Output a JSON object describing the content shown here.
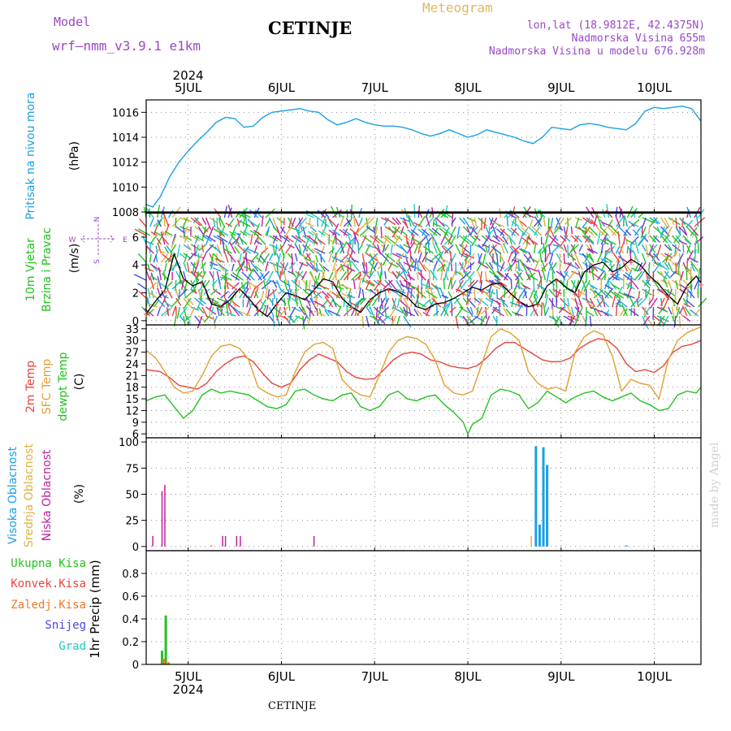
{
  "header": {
    "model_label": "Model",
    "model_name": "wrf–nmm_v3.9.1 e1km",
    "title": "CETINJE",
    "product": "Meteogram",
    "lonlat": "lon,lat (18.9812E, 42.4375N)",
    "elevation": "Nadmorska Visina 655m",
    "model_elevation": "Nadmorska Visina u modelu 676.928m",
    "footer": "CETINJE",
    "credit": "made by Angel"
  },
  "colors": {
    "pressure": "#1aa0e6",
    "temp2m": "#e8443c",
    "sfc_temp": "#e0a030",
    "dewpoint": "#22c21e",
    "high_cloud": "#1aa0e6",
    "mid_cloud": "#e0b040",
    "low_cloud": "#c0209c",
    "precip_total": "#22c21e",
    "precip_conv": "#e8443c",
    "precip_frozen": "#f07828",
    "snow": "#4a48e0",
    "hail": "#20c8c0",
    "wind": "#000000"
  },
  "time_axis": {
    "year": "2024",
    "days": [
      "5JUL",
      "6JUL",
      "7JUL",
      "8JUL",
      "9JUL",
      "10JUL"
    ],
    "start_day_fraction": 4.55,
    "end_day_fraction": 10.5
  },
  "wind_rose": {
    "n": "N",
    "s": "S",
    "e": "E",
    "w": "W"
  },
  "chart_data": [
    {
      "type": "line",
      "ylabel_title": "Pritisak na nivou mora",
      "ylabel_unit": "(hPa)",
      "ylim": [
        1008,
        1017
      ],
      "yticks": [
        "1008",
        "1010",
        "1012",
        "1014",
        "1016"
      ],
      "grid": true,
      "series": [
        {
          "color_key": "pressure",
          "x": [
            4.55,
            4.62,
            4.7,
            4.8,
            4.9,
            5.0,
            5.1,
            5.2,
            5.3,
            5.4,
            5.5,
            5.6,
            5.7,
            5.8,
            5.9,
            6.0,
            6.1,
            6.2,
            6.3,
            6.4,
            6.5,
            6.6,
            6.7,
            6.8,
            6.9,
            7.0,
            7.1,
            7.2,
            7.3,
            7.4,
            7.5,
            7.6,
            7.7,
            7.8,
            7.9,
            8.0,
            8.1,
            8.2,
            8.3,
            8.4,
            8.5,
            8.6,
            8.7,
            8.8,
            8.9,
            9.0,
            9.1,
            9.2,
            9.3,
            9.4,
            9.5,
            9.6,
            9.7,
            9.8,
            9.9,
            10.0,
            10.1,
            10.2,
            10.3,
            10.4,
            10.5
          ],
          "values": [
            1008.6,
            1008.4,
            1009.2,
            1010.8,
            1012.0,
            1012.9,
            1013.7,
            1014.4,
            1015.2,
            1015.6,
            1015.5,
            1014.8,
            1014.9,
            1015.6,
            1016.0,
            1016.1,
            1016.2,
            1016.3,
            1016.1,
            1016.0,
            1015.4,
            1015.0,
            1015.2,
            1015.5,
            1015.2,
            1015.0,
            1014.9,
            1014.9,
            1014.8,
            1014.6,
            1014.3,
            1014.1,
            1014.3,
            1014.6,
            1014.3,
            1014.0,
            1014.2,
            1014.6,
            1014.4,
            1014.2,
            1014.0,
            1013.7,
            1013.5,
            1014.0,
            1014.8,
            1014.7,
            1014.6,
            1015.0,
            1015.1,
            1015.0,
            1014.8,
            1014.7,
            1014.6,
            1015.1,
            1016.1,
            1016.4,
            1016.3,
            1016.4,
            1016.5,
            1016.3,
            1015.3
          ]
        }
      ]
    },
    {
      "type": "line",
      "ylabel_title": "10m Vjetar",
      "ylabel_title2": "Brzina i Pravac",
      "ylabel_unit": "(m/s)",
      "ylim": [
        -0.3,
        7.8
      ],
      "yticks": [
        "0",
        "2",
        "4",
        "6"
      ],
      "grid": true,
      "series": [
        {
          "color_key": "wind",
          "x": [
            4.55,
            4.65,
            4.75,
            4.85,
            4.95,
            5.05,
            5.15,
            5.25,
            5.35,
            5.45,
            5.55,
            5.65,
            5.75,
            5.85,
            5.95,
            6.05,
            6.15,
            6.25,
            6.35,
            6.45,
            6.55,
            6.65,
            6.75,
            6.85,
            6.95,
            7.05,
            7.15,
            7.25,
            7.35,
            7.45,
            7.55,
            7.65,
            7.75,
            7.85,
            7.95,
            8.05,
            8.15,
            8.25,
            8.35,
            8.45,
            8.55,
            8.65,
            8.75,
            8.85,
            8.95,
            9.05,
            9.15,
            9.25,
            9.35,
            9.45,
            9.55,
            9.65,
            9.75,
            9.85,
            9.95,
            10.05,
            10.15,
            10.25,
            10.35,
            10.45,
            10.5
          ],
          "values": [
            0.5,
            1.4,
            2.2,
            4.8,
            3.0,
            2.5,
            2.8,
            1.2,
            1.0,
            1.5,
            2.3,
            1.6,
            0.8,
            0.3,
            1.2,
            2.0,
            1.8,
            1.5,
            2.2,
            3.0,
            2.8,
            1.6,
            1.0,
            0.6,
            1.5,
            2.0,
            2.3,
            2.1,
            1.7,
            1.0,
            0.8,
            1.2,
            1.3,
            1.6,
            2.0,
            2.4,
            2.2,
            2.6,
            2.7,
            2.0,
            1.4,
            1.0,
            1.2,
            2.5,
            3.0,
            2.4,
            2.0,
            3.5,
            4.0,
            4.2,
            3.5,
            3.8,
            4.4,
            4.0,
            3.2,
            2.6,
            1.8,
            1.2,
            2.5,
            3.2,
            2.7
          ]
        }
      ]
    },
    {
      "type": "line",
      "ylabel_title": "2m Temp",
      "ylabel_title2": "SFC Temp",
      "ylabel_title3": "dewpt Temp",
      "ylabel_unit": "(C)",
      "ylim": [
        5,
        34
      ],
      "yticks": [
        "6",
        "9",
        "12",
        "15",
        "18",
        "21",
        "24",
        "27",
        "30",
        "33"
      ],
      "grid": true,
      "series": [
        {
          "color_key": "temp2m",
          "x": [
            4.55,
            4.7,
            4.8,
            4.9,
            5.0,
            5.1,
            5.2,
            5.3,
            5.4,
            5.5,
            5.6,
            5.7,
            5.8,
            5.9,
            6.0,
            6.1,
            6.2,
            6.3,
            6.4,
            6.5,
            6.6,
            6.7,
            6.8,
            6.9,
            7.0,
            7.1,
            7.2,
            7.3,
            7.4,
            7.5,
            7.6,
            7.7,
            7.8,
            7.9,
            8.0,
            8.1,
            8.2,
            8.3,
            8.4,
            8.5,
            8.6,
            8.7,
            8.8,
            8.9,
            9.0,
            9.1,
            9.2,
            9.3,
            9.4,
            9.5,
            9.6,
            9.7,
            9.8,
            9.9,
            10.0,
            10.1,
            10.2,
            10.3,
            10.4,
            10.5
          ],
          "values": [
            22.5,
            22.0,
            20.5,
            18.5,
            18.0,
            17.5,
            19.0,
            22.0,
            24.0,
            25.5,
            26.0,
            24.5,
            21.5,
            19.0,
            18.0,
            19.0,
            22.5,
            25.0,
            26.5,
            25.5,
            24.5,
            22.0,
            20.5,
            20.0,
            20.2,
            22.5,
            25.0,
            26.5,
            27.0,
            26.5,
            25.0,
            24.5,
            23.5,
            23.0,
            22.8,
            23.5,
            25.5,
            28.0,
            29.5,
            29.5,
            28.0,
            26.5,
            25.0,
            24.5,
            24.6,
            25.5,
            28.0,
            29.5,
            30.5,
            30.0,
            28.0,
            24.0,
            22.0,
            22.5,
            21.8,
            23.5,
            27.0,
            28.5,
            29.0,
            30.0
          ]
        },
        {
          "color_key": "sfc_temp",
          "x": [
            4.55,
            4.65,
            4.75,
            4.85,
            4.95,
            5.05,
            5.15,
            5.25,
            5.35,
            5.45,
            5.55,
            5.65,
            5.75,
            5.85,
            5.95,
            6.05,
            6.15,
            6.25,
            6.35,
            6.45,
            6.55,
            6.65,
            6.75,
            6.85,
            6.95,
            7.05,
            7.15,
            7.25,
            7.35,
            7.45,
            7.55,
            7.65,
            7.75,
            7.85,
            7.95,
            8.05,
            8.15,
            8.25,
            8.35,
            8.45,
            8.55,
            8.65,
            8.75,
            8.85,
            8.95,
            9.05,
            9.15,
            9.25,
            9.35,
            9.45,
            9.55,
            9.65,
            9.75,
            9.85,
            9.95,
            10.05,
            10.15,
            10.25,
            10.35,
            10.45,
            10.5
          ],
          "values": [
            27.5,
            25.5,
            22.0,
            18.0,
            16.5,
            17.0,
            21.0,
            26.0,
            28.5,
            29.0,
            28.0,
            25.0,
            18.0,
            16.5,
            15.5,
            16.0,
            22.0,
            27.0,
            29.0,
            29.5,
            28.0,
            20.0,
            17.5,
            16.0,
            15.5,
            21.0,
            27.0,
            30.0,
            31.0,
            30.5,
            29.0,
            25.0,
            18.5,
            16.5,
            16.0,
            17.0,
            24.0,
            31.0,
            33.0,
            32.0,
            30.0,
            22.0,
            19.0,
            17.5,
            18.0,
            17.0,
            27.0,
            31.0,
            32.5,
            31.5,
            26.0,
            17.0,
            20.0,
            19.0,
            18.5,
            15.0,
            25.0,
            30.0,
            32.0,
            33.0,
            33.5
          ]
        },
        {
          "color_key": "dewpoint",
          "x": [
            4.55,
            4.65,
            4.75,
            4.85,
            4.95,
            5.05,
            5.15,
            5.25,
            5.35,
            5.45,
            5.55,
            5.65,
            5.75,
            5.85,
            5.95,
            6.05,
            6.15,
            6.25,
            6.35,
            6.45,
            6.55,
            6.65,
            6.75,
            6.85,
            6.95,
            7.05,
            7.15,
            7.25,
            7.35,
            7.45,
            7.55,
            7.65,
            7.75,
            7.85,
            7.95,
            8.0,
            8.05,
            8.15,
            8.25,
            8.35,
            8.45,
            8.55,
            8.65,
            8.75,
            8.85,
            8.95,
            9.05,
            9.15,
            9.25,
            9.35,
            9.45,
            9.55,
            9.65,
            9.75,
            9.85,
            9.95,
            10.05,
            10.15,
            10.25,
            10.35,
            10.45,
            10.5
          ],
          "values": [
            14.5,
            15.5,
            16.0,
            13.0,
            10.0,
            12.0,
            16.0,
            17.5,
            16.5,
            17.0,
            16.5,
            16.0,
            14.5,
            13.0,
            12.5,
            13.5,
            17.0,
            17.5,
            16.0,
            15.0,
            14.5,
            16.0,
            16.5,
            13.0,
            12.0,
            13.0,
            16.0,
            17.0,
            15.0,
            14.5,
            15.5,
            16.0,
            13.5,
            11.5,
            9.0,
            6.0,
            8.5,
            10.0,
            16.0,
            17.5,
            17.0,
            16.0,
            12.5,
            14.0,
            17.0,
            15.5,
            14.0,
            15.5,
            16.5,
            17.0,
            15.5,
            14.5,
            15.5,
            16.5,
            14.5,
            13.5,
            12.0,
            12.5,
            16.0,
            17.0,
            16.5,
            18.0
          ]
        }
      ]
    },
    {
      "type": "bar",
      "ylabel_title": "Visoka Oblacnost",
      "ylabel_title2": "Srednja Oblacnost",
      "ylabel_title3": "Niska Oblacnost",
      "ylabel_unit": "(%)",
      "ylim": [
        -4,
        104
      ],
      "yticks": [
        "0",
        "25",
        "50",
        "75",
        "100"
      ],
      "grid": true,
      "series": [
        {
          "color_key": "high_cloud",
          "x": [
            8.73,
            8.77,
            8.81,
            8.85,
            9.7
          ],
          "values": [
            96,
            21,
            95,
            78,
            1
          ]
        },
        {
          "color_key": "mid_cloud",
          "x": [
            8.68
          ],
          "values": [
            10
          ]
        },
        {
          "color_key": "low_cloud",
          "x": [
            4.62,
            4.72,
            4.75,
            5.25,
            5.37,
            5.4,
            5.52,
            5.56,
            6.35
          ],
          "values": [
            10,
            53,
            59,
            1,
            10,
            10,
            10,
            10,
            10
          ]
        }
      ]
    },
    {
      "type": "bar",
      "ylabel_title": "Ukupna Kisa",
      "ylabel_title2": "Konvek.Kisa",
      "ylabel_title3": "Zaledj.Kisa",
      "ylabel_title4": "Snijeg",
      "ylabel_title5": "Grad",
      "ylabel_unit": "1hr Precip (mm)",
      "ylim": [
        0,
        1.0
      ],
      "yticks": [
        "0",
        "0.2",
        "0.4",
        "0.6",
        "0.8"
      ],
      "grid": true,
      "series": [
        {
          "color_key": "precip_total",
          "x": [
            4.72,
            4.76
          ],
          "values": [
            0.12,
            0.43
          ]
        },
        {
          "color_key": "precip_frozen",
          "x": [
            4.74,
            4.79
          ],
          "values": [
            0.05,
            0.02
          ]
        }
      ]
    }
  ]
}
